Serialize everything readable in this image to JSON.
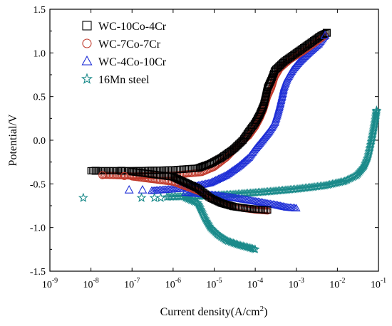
{
  "chart_data": {
    "type": "scatter",
    "xlabel": "Current density(A/cm",
    "xlabel_sup": "2",
    "xlabel_close": ")",
    "ylabel": "Potential/V",
    "x_scale": "log",
    "xlim": [
      1e-09,
      0.1
    ],
    "ylim": [
      -1.5,
      1.5
    ],
    "x_ticks": [
      {
        "value": 1e-09,
        "base": "10",
        "exp": "-9"
      },
      {
        "value": 1e-08,
        "base": "10",
        "exp": "-8"
      },
      {
        "value": 1e-07,
        "base": "10",
        "exp": "-7"
      },
      {
        "value": 1e-06,
        "base": "10",
        "exp": "-6"
      },
      {
        "value": 1e-05,
        "base": "10",
        "exp": "-5"
      },
      {
        "value": 0.0001,
        "base": "10",
        "exp": "-4"
      },
      {
        "value": 0.001,
        "base": "10",
        "exp": "-3"
      },
      {
        "value": 0.01,
        "base": "10",
        "exp": "-2"
      },
      {
        "value": 0.1,
        "base": "10",
        "exp": "-1"
      }
    ],
    "y_ticks": [
      {
        "value": 1.5,
        "label": "1.5"
      },
      {
        "value": 1.0,
        "label": "1.0"
      },
      {
        "value": 0.5,
        "label": "0.5"
      },
      {
        "value": 0.0,
        "label": "0.0"
      },
      {
        "value": -0.5,
        "label": "-0.5"
      },
      {
        "value": -1.0,
        "label": "-1.0"
      },
      {
        "value": -1.5,
        "label": "-1.5"
      }
    ],
    "legend_position": "top-left",
    "grid": false,
    "series": [
      {
        "name": "WC-10Co-4Cr",
        "marker": "square",
        "color": "#000000",
        "anodic": [
          [
            1e-08,
            -0.35
          ],
          [
            1e-07,
            -0.35
          ],
          [
            1e-06,
            -0.34
          ],
          [
            4e-06,
            -0.32
          ],
          [
            8e-06,
            -0.27
          ],
          [
            1.5e-05,
            -0.2
          ],
          [
            3e-05,
            -0.1
          ],
          [
            5e-05,
            0.0
          ],
          [
            7e-05,
            0.1
          ],
          [
            0.0001,
            0.2
          ],
          [
            0.00013,
            0.3
          ],
          [
            0.00016,
            0.4
          ],
          [
            0.00018,
            0.5
          ],
          [
            0.0002,
            0.6
          ],
          [
            0.00025,
            0.7
          ],
          [
            0.0003,
            0.8
          ],
          [
            0.0005,
            0.9
          ],
          [
            0.001,
            1.0
          ],
          [
            0.002,
            1.1
          ],
          [
            0.004,
            1.2
          ],
          [
            0.0055,
            1.23
          ]
        ],
        "cathodic": [
          [
            1e-07,
            -0.36
          ],
          [
            1e-06,
            -0.42
          ],
          [
            4e-06,
            -0.55
          ],
          [
            8e-06,
            -0.66
          ],
          [
            1.5e-05,
            -0.72
          ],
          [
            3e-05,
            -0.76
          ],
          [
            6e-05,
            -0.78
          ],
          [
            0.0001,
            -0.79
          ],
          [
            0.0002,
            -0.8
          ]
        ]
      },
      {
        "name": "WC-7Co-7Cr",
        "marker": "circle",
        "color": "#c0392b",
        "anodic": [
          [
            2e-08,
            -0.4
          ],
          [
            1e-07,
            -0.41
          ],
          [
            1e-06,
            -0.4
          ],
          [
            5e-06,
            -0.37
          ],
          [
            1e-05,
            -0.31
          ],
          [
            2e-05,
            -0.2
          ],
          [
            4e-05,
            -0.05
          ],
          [
            7e-05,
            0.05
          ],
          [
            0.0001,
            0.15
          ],
          [
            0.00013,
            0.25
          ],
          [
            0.00016,
            0.35
          ],
          [
            0.0002,
            0.5
          ],
          [
            0.00025,
            0.6
          ],
          [
            0.0003,
            0.72
          ],
          [
            0.0004,
            0.82
          ],
          [
            0.0007,
            0.92
          ],
          [
            0.0015,
            1.02
          ],
          [
            0.003,
            1.12
          ],
          [
            0.005,
            1.2
          ]
        ],
        "cathodic": [
          [
            1e-07,
            -0.42
          ],
          [
            1e-06,
            -0.48
          ],
          [
            5e-06,
            -0.6
          ],
          [
            1e-05,
            -0.68
          ],
          [
            2e-05,
            -0.74
          ],
          [
            5e-05,
            -0.78
          ],
          [
            0.0001,
            -0.8
          ],
          [
            0.0002,
            -0.81
          ]
        ]
      },
      {
        "name": "WC-4Co-10Cr",
        "marker": "triangle",
        "color": "#1f2fd6",
        "anodic": [
          [
            3e-07,
            -0.58
          ],
          [
            2e-06,
            -0.55
          ],
          [
            8e-06,
            -0.49
          ],
          [
            2e-05,
            -0.4
          ],
          [
            4e-05,
            -0.3
          ],
          [
            7e-05,
            -0.2
          ],
          [
            0.0001,
            -0.1
          ],
          [
            0.00015,
            0.0
          ],
          [
            0.00022,
            0.1
          ],
          [
            0.0003,
            0.2
          ],
          [
            0.00035,
            0.3
          ],
          [
            0.0004,
            0.4
          ],
          [
            0.00045,
            0.5
          ],
          [
            0.0005,
            0.6
          ],
          [
            0.0006,
            0.7
          ],
          [
            0.0008,
            0.8
          ],
          [
            0.0012,
            0.9
          ],
          [
            0.002,
            1.0
          ],
          [
            0.0035,
            1.1
          ],
          [
            0.005,
            1.2
          ]
        ],
        "cathodic": [
          [
            2e-06,
            -0.6
          ],
          [
            1e-05,
            -0.63
          ],
          [
            3e-05,
            -0.66
          ],
          [
            0.0001,
            -0.7
          ],
          [
            0.0003,
            -0.74
          ],
          [
            0.0006,
            -0.77
          ],
          [
            0.001,
            -0.78
          ]
        ]
      },
      {
        "name": "16Mn steel",
        "marker": "star",
        "color": "#1a8a8a",
        "anodic": [
          [
            7e-07,
            -0.65
          ],
          [
            5e-06,
            -0.64
          ],
          [
            3e-05,
            -0.62
          ],
          [
            0.0002,
            -0.59
          ],
          [
            0.001,
            -0.56
          ],
          [
            0.005,
            -0.52
          ],
          [
            0.015,
            -0.47
          ],
          [
            0.03,
            -0.4
          ],
          [
            0.045,
            -0.3
          ],
          [
            0.055,
            -0.2
          ],
          [
            0.065,
            -0.05
          ],
          [
            0.075,
            0.1
          ],
          [
            0.085,
            0.25
          ],
          [
            0.09,
            0.34
          ]
        ],
        "cathodic": [
          [
            2e-06,
            -0.66
          ],
          [
            4e-06,
            -0.72
          ],
          [
            5e-06,
            -0.82
          ],
          [
            6e-06,
            -0.9
          ],
          [
            8e-06,
            -1.0
          ],
          [
            1.2e-05,
            -1.08
          ],
          [
            2e-05,
            -1.15
          ],
          [
            4e-05,
            -1.2
          ],
          [
            7e-05,
            -1.23
          ],
          [
            0.0001,
            -1.25
          ]
        ]
      }
    ],
    "scattered_points": [
      {
        "series": 0,
        "points": [
          [
            1.3e-08,
            -0.35
          ],
          [
            5.5e-08,
            -0.35
          ]
        ]
      },
      {
        "series": 1,
        "points": [
          [
            1.9e-08,
            -0.4
          ],
          [
            6.5e-08,
            -0.41
          ]
        ]
      },
      {
        "series": 2,
        "points": [
          [
            8.5e-08,
            -0.57
          ],
          [
            1.8e-07,
            -0.57
          ]
        ]
      },
      {
        "series": 3,
        "points": [
          [
            6.5e-09,
            -0.66
          ],
          [
            1.7e-07,
            -0.66
          ],
          [
            3.5e-07,
            -0.66
          ],
          [
            5e-07,
            -0.66
          ]
        ]
      }
    ]
  }
}
